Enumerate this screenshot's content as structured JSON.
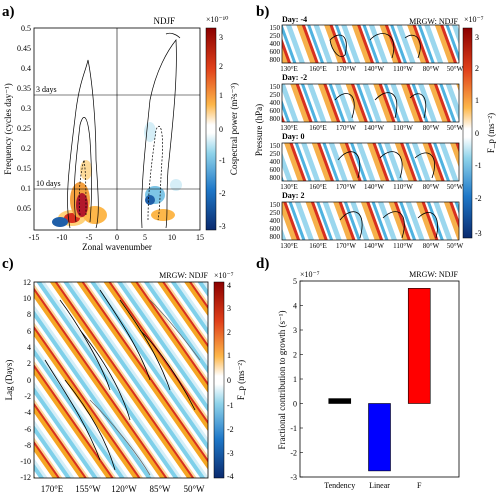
{
  "panels": {
    "a": {
      "letter": "a)",
      "tag": "NDJF",
      "xlabel": "Zonal wavenumber",
      "ylabel": "Frequency (cycles day⁻¹)",
      "xticks": [
        "-15",
        "-10",
        "-5",
        "0",
        "5",
        "10",
        "15"
      ],
      "yticks": [
        "0.05",
        "0.1",
        "0.15",
        "0.2",
        "0.25",
        "0.3",
        "0.35",
        "0.4",
        "0.45",
        "0.5"
      ],
      "period_labels": [
        "3 days",
        "10 days"
      ],
      "cbar_title": "Cospectral power (m²s⁻³)",
      "cbar_exp": "×10⁻¹⁰",
      "cbar_ticks": [
        "3",
        "2",
        "1",
        "0",
        "-1",
        "-2",
        "-3"
      ]
    },
    "b": {
      "letter": "b)",
      "tag": "MRGW: NDJF",
      "ylabel": "Pressure (hPa)",
      "days": [
        "Day: -4",
        "Day: -2",
        "Day: 0",
        "Day: 2"
      ],
      "lon_ticks": [
        "130°E",
        "160°E",
        "170°W",
        "140°W",
        "110°W",
        "80°W",
        "50°W"
      ],
      "p_ticks": [
        "150",
        "250",
        "400",
        "600",
        "800"
      ],
      "cbar_title": "F_p (ms⁻²)",
      "cbar_exp": "×10⁻⁷",
      "cbar_ticks": [
        "3",
        "2",
        "1",
        "0",
        "-1",
        "-2",
        "-3"
      ]
    },
    "c": {
      "letter": "c)",
      "tag": "MRGW: NDJF",
      "ylabel": "Lag (Days)",
      "xticks": [
        "170°E",
        "155°W",
        "120°W",
        "85°W",
        "50°W"
      ],
      "yticks": [
        "12",
        "10",
        "8",
        "6",
        "4",
        "2",
        "0",
        "-2",
        "-4",
        "-6",
        "-8",
        "-10",
        "-12"
      ],
      "cbar_title": "F_p (ms⁻²)",
      "cbar_exp": "×10⁻⁷",
      "cbar_ticks": [
        "4",
        "3",
        "2",
        "1",
        "0",
        "-1",
        "-2",
        "-3",
        "-4"
      ]
    },
    "d": {
      "letter": "d)",
      "tag": "MRGW: NDJF",
      "ylabel": "Fractional contribution to growth (s⁻¹)",
      "yexp": "×10⁻⁷"
    }
  },
  "colors": {
    "bar_tendency": "#000000",
    "bar_linear": "#0000ff",
    "bar_f": "#ff0000"
  },
  "chart_data": {
    "type": "bar",
    "categories": [
      "Tendency",
      "Linear",
      "F"
    ],
    "values": [
      2e-08,
      -2.75e-07,
      4.7e-07
    ],
    "yticks": [
      "-3",
      "-2",
      "-1",
      "0",
      "1",
      "2",
      "3",
      "4",
      "5"
    ],
    "ylim": [
      -3e-07,
      5e-07
    ],
    "title": "MRGW: NDJF",
    "ylabel": "Fractional contribution to growth (s⁻¹)"
  }
}
